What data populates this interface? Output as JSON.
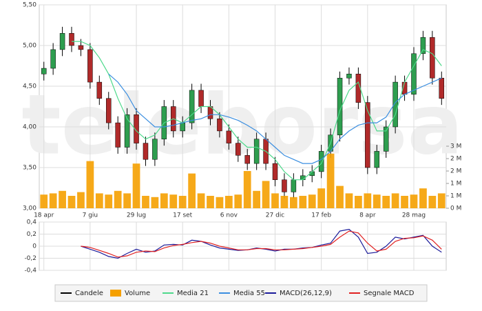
{
  "chart_data": [
    {
      "type": "candlestick",
      "watermark": "teleborsa",
      "categories": [
        "18 apr",
        null,
        null,
        null,
        null,
        "7 giu",
        null,
        null,
        null,
        null,
        "29 lug",
        null,
        null,
        null,
        null,
        "17 set",
        null,
        null,
        null,
        null,
        "6 nov",
        null,
        null,
        null,
        null,
        "27 dic",
        null,
        null,
        null,
        null,
        "17 feb",
        null,
        null,
        null,
        null,
        "8 apr",
        null,
        null,
        null,
        null,
        "28 mag",
        null,
        null,
        null
      ],
      "ylim": [
        3.0,
        5.5
      ],
      "yticks": [
        {
          "value": 3.0,
          "label": "3,00"
        },
        {
          "value": 3.5,
          "label": "3,50"
        },
        {
          "value": 4.0,
          "label": "4,00"
        },
        {
          "value": 4.5,
          "label": "4,50"
        },
        {
          "value": 5.0,
          "label": "5,00"
        },
        {
          "value": 5.5,
          "label": "5,50"
        }
      ],
      "y2lim": [
        0,
        2.5
      ],
      "y2ticks": [
        {
          "value": 0,
          "label": "0 M"
        },
        {
          "value": 0.5,
          "label": "1 M"
        },
        {
          "value": 1,
          "label": "1 M"
        },
        {
          "value": 1.5,
          "label": "2 M"
        },
        {
          "value": 2,
          "label": "2 M"
        },
        {
          "value": 2.5,
          "label": "3 M"
        }
      ],
      "grid": true,
      "series": [
        {
          "name": "Candele",
          "color": "#000000",
          "up_color": "#2e9e4f",
          "down_color": "#b02a2a",
          "open": [
            4.65,
            4.72,
            4.95,
            5.15,
            5.0,
            4.95,
            4.55,
            4.35,
            4.05,
            3.75,
            4.15,
            3.8,
            3.6,
            3.85,
            4.25,
            3.95,
            4.05,
            4.45,
            4.25,
            4.1,
            3.95,
            3.8,
            3.65,
            3.55,
            3.85,
            3.55,
            3.35,
            3.2,
            3.35,
            3.4,
            3.45,
            3.7,
            3.9,
            4.6,
            4.65,
            4.3,
            3.5,
            3.7,
            4.0,
            4.55,
            4.4,
            4.9,
            5.1,
            4.6
          ],
          "high": [
            4.8,
            5.03,
            5.23,
            5.23,
            5.08,
            5.03,
            4.63,
            4.43,
            4.13,
            4.23,
            4.23,
            3.88,
            3.93,
            4.33,
            4.33,
            4.13,
            4.53,
            4.53,
            4.33,
            4.18,
            4.03,
            3.88,
            3.73,
            3.93,
            3.93,
            3.63,
            3.43,
            3.43,
            3.48,
            3.53,
            3.78,
            3.98,
            4.68,
            4.73,
            4.73,
            4.38,
            3.78,
            4.08,
            4.63,
            4.63,
            4.98,
            5.18,
            5.18,
            4.68
          ],
          "low": [
            4.57,
            4.64,
            4.87,
            4.92,
            4.87,
            4.47,
            4.27,
            3.97,
            3.67,
            3.67,
            3.72,
            3.52,
            3.52,
            3.77,
            3.87,
            3.87,
            3.97,
            4.17,
            4.02,
            3.87,
            3.72,
            3.57,
            3.47,
            3.47,
            3.47,
            3.27,
            3.12,
            3.12,
            3.27,
            3.32,
            3.37,
            3.62,
            3.82,
            4.52,
            4.22,
            3.42,
            3.42,
            3.62,
            3.92,
            4.32,
            4.32,
            4.82,
            4.52,
            4.27
          ],
          "close": [
            4.72,
            4.95,
            5.15,
            5.0,
            4.95,
            4.55,
            4.35,
            4.05,
            3.75,
            4.15,
            3.8,
            3.6,
            3.85,
            4.25,
            3.95,
            4.05,
            4.45,
            4.25,
            4.1,
            3.95,
            3.8,
            3.65,
            3.55,
            3.85,
            3.55,
            3.35,
            3.2,
            3.35,
            3.4,
            3.45,
            3.7,
            3.9,
            4.6,
            4.65,
            4.3,
            3.5,
            3.7,
            4.0,
            4.55,
            4.4,
            4.9,
            5.1,
            4.6,
            4.35
          ]
        },
        {
          "name": "Volume",
          "color": "#f5a000",
          "axis": "y2",
          "values": [
            0.55,
            0.6,
            0.7,
            0.5,
            0.65,
            1.9,
            0.6,
            0.55,
            0.7,
            0.6,
            1.8,
            0.5,
            0.45,
            0.6,
            0.55,
            0.5,
            1.4,
            0.6,
            0.5,
            0.45,
            0.5,
            0.55,
            1.5,
            0.7,
            1.1,
            0.6,
            0.5,
            0.45,
            0.5,
            0.55,
            0.8,
            2.2,
            0.9,
            0.6,
            0.5,
            0.6,
            0.55,
            0.5,
            0.6,
            0.5,
            0.55,
            0.8,
            0.5,
            0.6
          ]
        },
        {
          "name": "Media 21",
          "color": "#4cd98a",
          "values": [
            null,
            null,
            null,
            5.05,
            5.05,
            5.0,
            4.85,
            4.65,
            4.35,
            4.1,
            3.95,
            3.85,
            3.9,
            4.05,
            4.1,
            4.05,
            4.15,
            4.25,
            4.25,
            4.15,
            4.0,
            3.85,
            3.75,
            3.75,
            3.7,
            3.6,
            3.45,
            3.35,
            3.35,
            3.45,
            3.55,
            3.8,
            4.2,
            4.45,
            4.55,
            4.2,
            3.95,
            3.95,
            4.15,
            4.55,
            4.75,
            4.95,
            4.9,
            4.75
          ]
        },
        {
          "name": "Media 55",
          "color": "#3a8ee0",
          "values": [
            null,
            null,
            null,
            null,
            null,
            null,
            null,
            4.65,
            4.55,
            4.4,
            4.2,
            4.1,
            4.0,
            4.0,
            4.02,
            4.05,
            4.08,
            4.1,
            4.15,
            4.15,
            4.12,
            4.08,
            4.02,
            3.95,
            3.85,
            3.75,
            3.65,
            3.6,
            3.55,
            3.55,
            3.6,
            3.7,
            3.85,
            3.95,
            4.02,
            4.05,
            4.05,
            4.12,
            4.3,
            4.4,
            4.45,
            4.5,
            4.55,
            4.6
          ]
        }
      ]
    },
    {
      "type": "line",
      "ylim": [
        -0.4,
        0.4
      ],
      "yticks": [
        {
          "value": -0.4,
          "label": "-0,4"
        },
        {
          "value": -0.2,
          "label": "-0,2"
        },
        0,
        {
          "value": 0.2,
          "label": "0,2"
        },
        {
          "value": 0.4,
          "label": "0,4"
        }
      ],
      "grid": true,
      "series": [
        {
          "name": "MACD(26,12,9)",
          "color": "#1a1a9a",
          "values": [
            null,
            null,
            null,
            null,
            0.0,
            -0.05,
            -0.1,
            -0.17,
            -0.2,
            -0.12,
            -0.05,
            -0.1,
            -0.08,
            0.02,
            0.03,
            0.02,
            0.1,
            0.08,
            0.02,
            -0.03,
            -0.05,
            -0.07,
            -0.06,
            -0.03,
            -0.05,
            -0.08,
            -0.05,
            -0.05,
            -0.03,
            -0.02,
            0.02,
            0.05,
            0.25,
            0.28,
            0.15,
            -0.12,
            -0.1,
            0.0,
            0.15,
            0.12,
            0.15,
            0.18,
            0.0,
            -0.1
          ]
        },
        {
          "name": "Segnale MACD",
          "color": "#e02020",
          "values": [
            null,
            null,
            null,
            null,
            0.0,
            -0.02,
            -0.07,
            -0.12,
            -0.18,
            -0.16,
            -0.1,
            -0.08,
            -0.09,
            -0.03,
            0.01,
            0.03,
            0.06,
            0.08,
            0.05,
            0.0,
            -0.03,
            -0.06,
            -0.06,
            -0.04,
            -0.04,
            -0.06,
            -0.06,
            -0.05,
            -0.04,
            -0.02,
            0.0,
            0.03,
            0.15,
            0.25,
            0.22,
            0.05,
            -0.08,
            -0.05,
            0.08,
            0.13,
            0.14,
            0.17,
            0.1,
            -0.05
          ]
        }
      ]
    }
  ]
}
